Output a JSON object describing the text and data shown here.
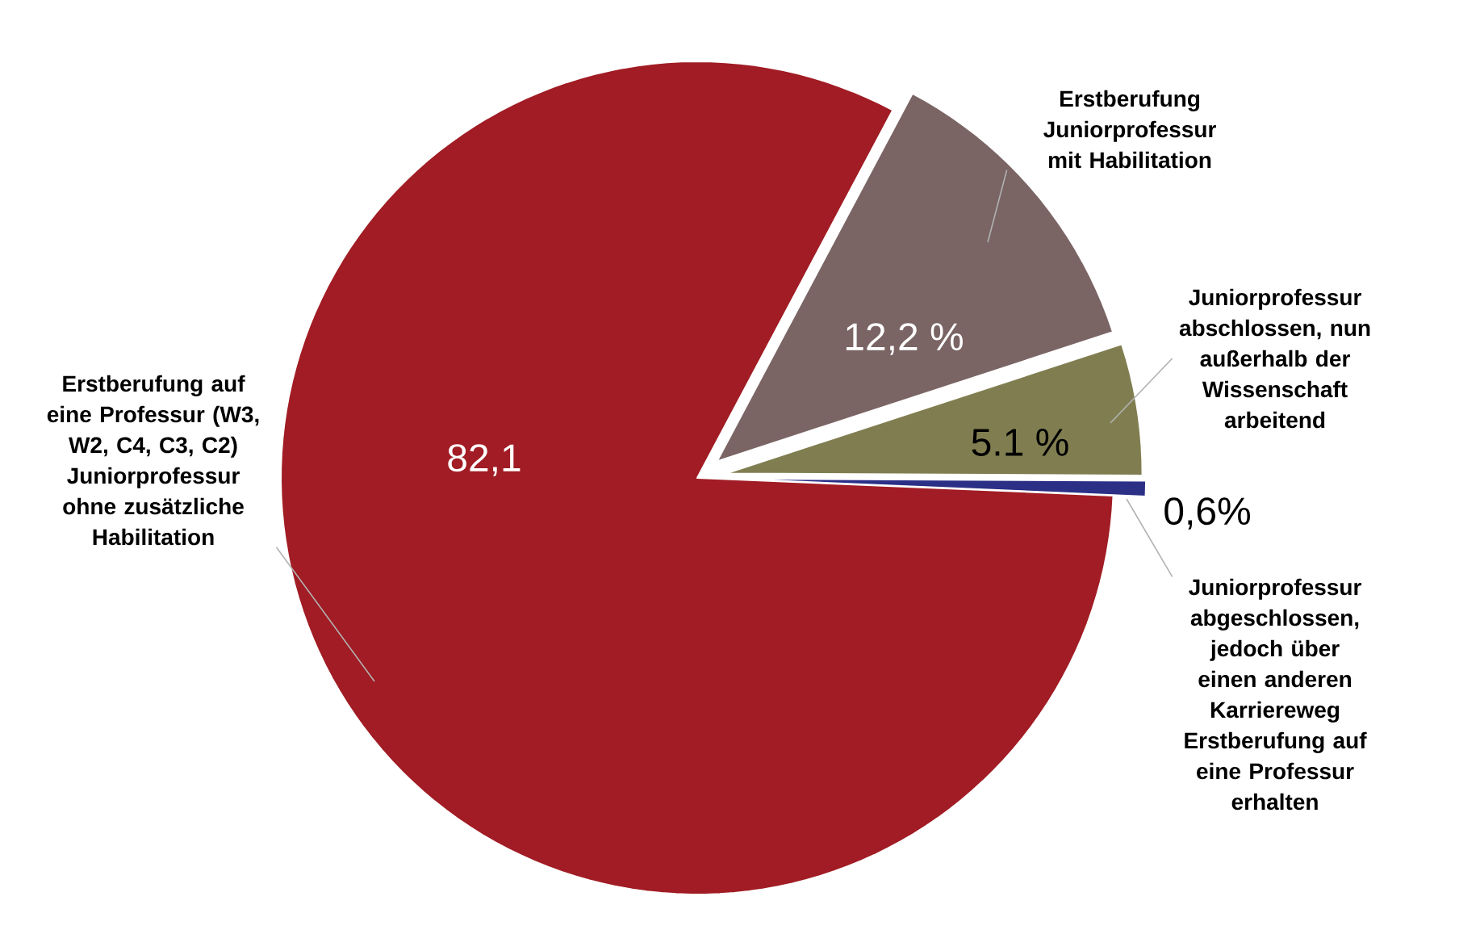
{
  "chart_data": {
    "type": "pie",
    "categories": [
      "Erstberufung Juniorprofessur mit Habilitation",
      "Juniorprofessur abschlossen, nun außerhalb der Wissenschaft arbeitend",
      "Juniorprofessur abgeschlossen, jedoch über einen anderen Karriereweg Erstberufung auf eine Professur erhalten",
      "Erstberufung auf eine Professur (W3, W2, C4, C3, C2) Juniorprofessur ohne zusätzliche Habilitation"
    ],
    "values": [
      12.2,
      5.1,
      0.6,
      82.1
    ],
    "value_labels": [
      "12,2 %",
      "5.1 %",
      "0,6%",
      "82,1"
    ],
    "colors": [
      "#7a6464",
      "#807e50",
      "#2b2f86",
      "#a11c24"
    ]
  }
}
